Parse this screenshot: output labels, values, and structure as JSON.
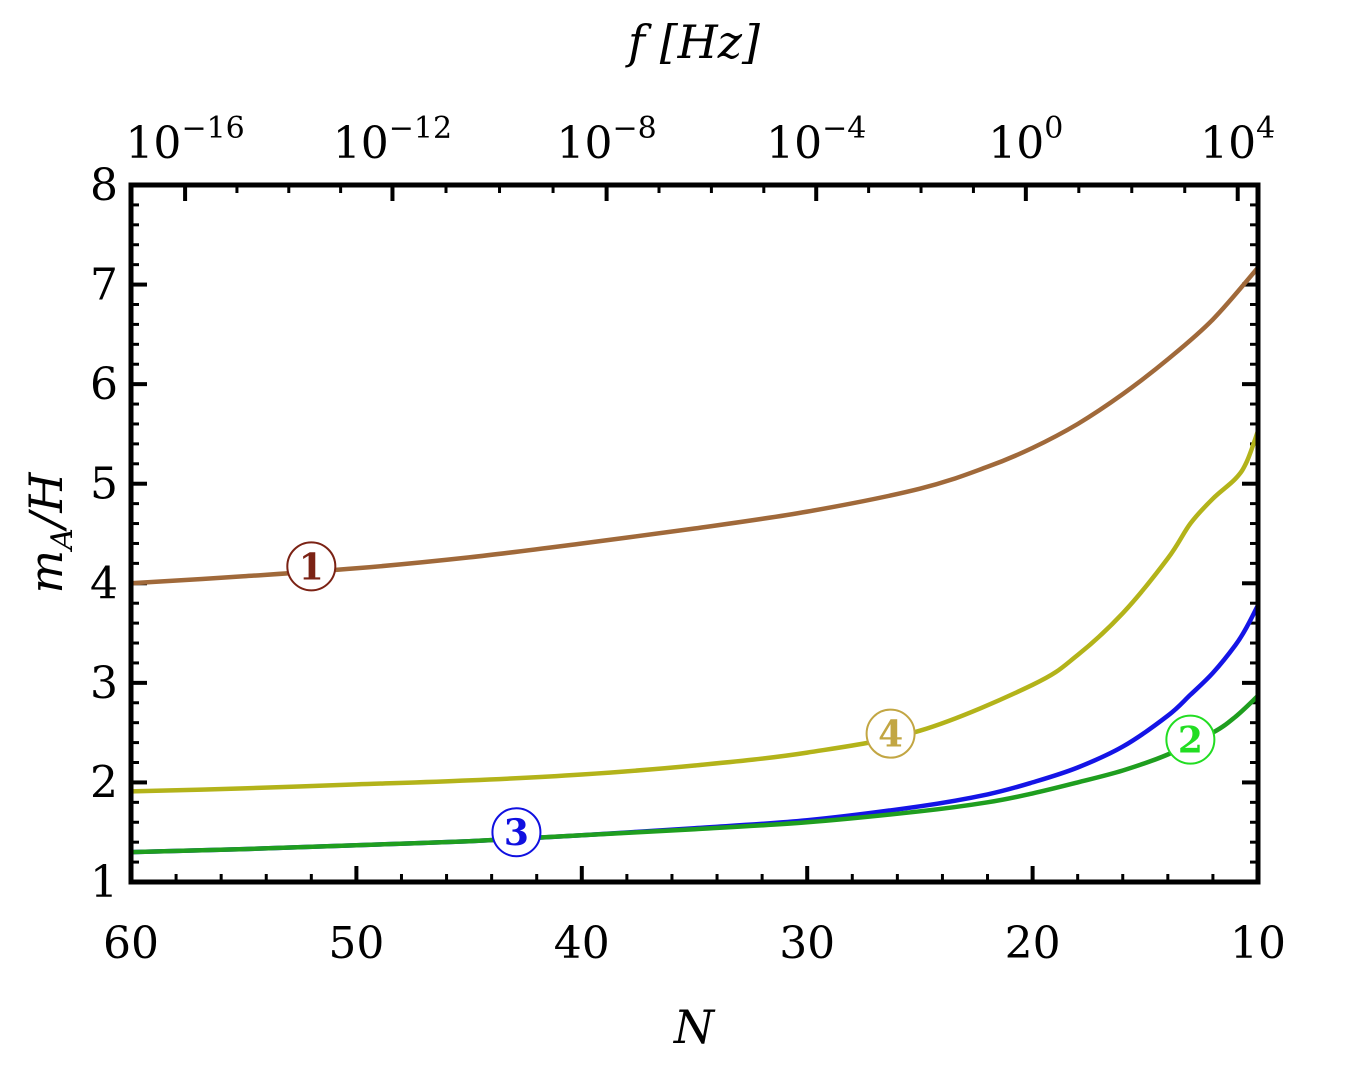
{
  "chart_data": {
    "type": "line",
    "xlabel": "N",
    "ylabel": "m_A/H",
    "x_reversed": true,
    "xlim": [
      60,
      10
    ],
    "ylim": [
      1,
      8
    ],
    "x_ticks": [
      "60",
      "50",
      "40",
      "30",
      "20",
      "10"
    ],
    "y_ticks": [
      "1",
      "2",
      "3",
      "4",
      "5",
      "6",
      "7",
      "8"
    ],
    "top_axis": {
      "label": "f [Hz]",
      "ticks": [
        {
          "base": "10",
          "exp": "−16",
          "N": 57.6
        },
        {
          "base": "10",
          "exp": "−12",
          "N": 48.4
        },
        {
          "base": "10",
          "exp": "−8",
          "N": 38.9
        },
        {
          "base": "10",
          "exp": "−4",
          "N": 29.6
        },
        {
          "base": "10",
          "exp": "0",
          "N": 20.3
        },
        {
          "base": "10",
          "exp": "4",
          "N": 10.9
        }
      ]
    },
    "series": [
      {
        "marker": "1",
        "color": "#a0693a",
        "marker_color": "#7b2214",
        "marker_at": [
          52,
          4.17
        ],
        "x": [
          60,
          55,
          50,
          45,
          40,
          35,
          30,
          25,
          22,
          20,
          18,
          16,
          14,
          12,
          10
        ],
        "y": [
          4.0,
          4.07,
          4.15,
          4.26,
          4.4,
          4.55,
          4.72,
          4.95,
          5.17,
          5.36,
          5.6,
          5.9,
          6.25,
          6.65,
          7.17
        ]
      },
      {
        "marker": "4",
        "color": "#b3b31a",
        "marker_color": "#c2a643",
        "marker_at": [
          26.3,
          2.49
        ],
        "x": [
          60,
          55,
          50,
          45,
          40,
          35,
          30,
          25,
          20,
          18,
          16,
          14,
          13,
          12,
          11,
          10.5,
          10
        ],
        "y": [
          1.91,
          1.94,
          1.98,
          2.02,
          2.08,
          2.17,
          2.3,
          2.52,
          2.98,
          3.28,
          3.7,
          4.25,
          4.6,
          4.85,
          5.05,
          5.22,
          5.53
        ]
      },
      {
        "marker": "3",
        "color": "#1414e6",
        "marker_color": "#1010e0",
        "marker_at": [
          42.9,
          1.5
        ],
        "x": [
          60,
          55,
          50,
          45,
          40,
          35,
          30,
          25,
          22,
          20,
          18,
          16,
          14,
          13,
          12,
          11,
          10.5,
          10
        ],
        "y": [
          1.3,
          1.33,
          1.37,
          1.41,
          1.47,
          1.54,
          1.62,
          1.76,
          1.88,
          2.0,
          2.15,
          2.36,
          2.67,
          2.88,
          3.1,
          3.38,
          3.56,
          3.78
        ]
      },
      {
        "marker": "2",
        "color": "#1f9e1f",
        "marker_color": "#22dd22",
        "marker_at": [
          13,
          2.43
        ],
        "x": [
          60,
          55,
          50,
          45,
          40,
          35,
          30,
          25,
          22,
          20,
          18,
          16,
          14,
          12,
          11,
          10
        ],
        "y": [
          1.3,
          1.33,
          1.37,
          1.41,
          1.47,
          1.53,
          1.6,
          1.71,
          1.8,
          1.89,
          2.0,
          2.12,
          2.28,
          2.5,
          2.66,
          2.87
        ]
      }
    ]
  }
}
